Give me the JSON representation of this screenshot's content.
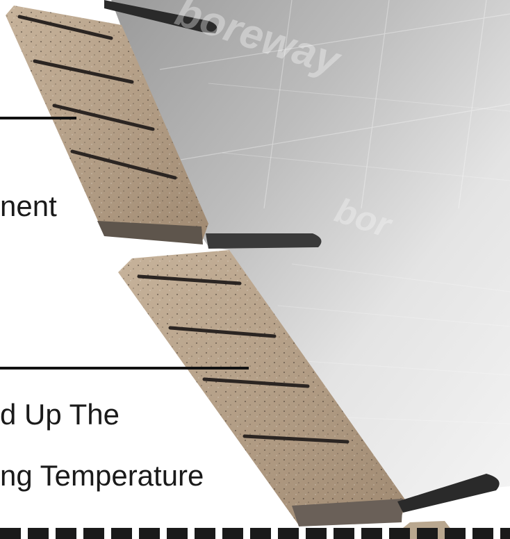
{
  "labels": {
    "segment_partial": "nent",
    "feature_line1_partial": "d Up The",
    "feature_line2_partial": "ng Temperature"
  },
  "watermark": {
    "text_top": "boreway",
    "text_mid": "bor"
  },
  "colors": {
    "steel_light": "#e6e6e6",
    "steel_mid": "#b9b9b9",
    "steel_dark": "#8a8a8a",
    "segment_tan": "#b59f87",
    "segment_dark": "#6d6156",
    "slot_dark": "#2a2a2a",
    "text": "#1a1a1a"
  }
}
